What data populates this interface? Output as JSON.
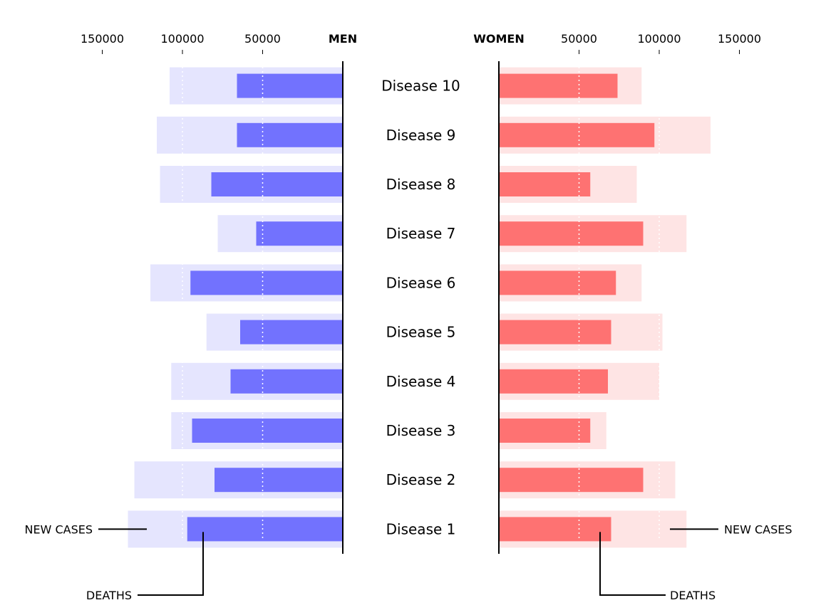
{
  "chart_data": {
    "type": "bar",
    "layout": "butterfly",
    "left_header": "MEN",
    "right_header": "WOMEN",
    "categories": [
      "Disease 1",
      "Disease 2",
      "Disease 3",
      "Disease 4",
      "Disease 5",
      "Disease 6",
      "Disease 7",
      "Disease 8",
      "Disease 9",
      "Disease 10"
    ],
    "men": {
      "new_cases": [
        134000,
        130000,
        107000,
        107000,
        85000,
        120000,
        78000,
        114000,
        116000,
        108000
      ],
      "deaths": [
        97000,
        80000,
        94000,
        70000,
        64000,
        95000,
        54000,
        82000,
        66000,
        66000
      ]
    },
    "women": {
      "new_cases": [
        117000,
        110000,
        67000,
        100000,
        102000,
        89000,
        117000,
        86000,
        132000,
        89000
      ],
      "deaths": [
        70000,
        90000,
        57000,
        68000,
        70000,
        73000,
        90000,
        57000,
        97000,
        74000
      ]
    },
    "xlim": [
      0,
      150000
    ],
    "ticks": [
      {
        "value": 150000,
        "label": "150000"
      },
      {
        "value": 100000,
        "label": "100000"
      },
      {
        "value": 50000,
        "label": "50000"
      }
    ],
    "annotations": {
      "new_cases": "NEW CASES",
      "deaths": "DEATHS"
    },
    "colors": {
      "men_new_cases": "#e5e5fe",
      "men_deaths": "#7272fe",
      "women_new_cases": "#fee4e4",
      "women_deaths": "#fe7272"
    }
  }
}
